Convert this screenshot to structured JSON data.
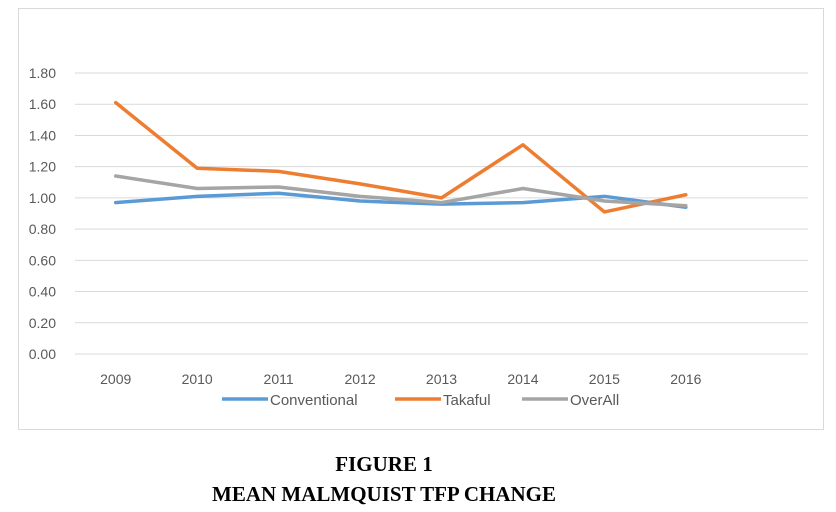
{
  "chart_data": {
    "type": "line",
    "categories": [
      "2009",
      "2010",
      "2011",
      "2012",
      "2013",
      "2014",
      "2015",
      "2016"
    ],
    "series": [
      {
        "name": "Conventional",
        "color": "#5B9BD5",
        "values": [
          0.97,
          1.01,
          1.03,
          0.98,
          0.96,
          0.97,
          1.01,
          0.94
        ]
      },
      {
        "name": "Takaful",
        "color": "#ED7D31",
        "values": [
          1.61,
          1.19,
          1.17,
          1.09,
          1.0,
          1.34,
          0.91,
          1.02
        ]
      },
      {
        "name": "OverAll",
        "color": "#A5A5A5",
        "values": [
          1.14,
          1.06,
          1.07,
          1.01,
          0.97,
          1.06,
          0.98,
          0.95
        ]
      }
    ],
    "yticks": [
      "0.00",
      "0.20",
      "0.40",
      "0.60",
      "0.80",
      "1.00",
      "1.20",
      "1.40",
      "1.60",
      "1.80"
    ],
    "ylim": [
      0,
      1.8
    ],
    "grid": true,
    "legend_position": "bottom"
  },
  "caption": {
    "line1": "FIGURE 1",
    "line2": "MEAN MALMQUIST TFP CHANGE"
  }
}
